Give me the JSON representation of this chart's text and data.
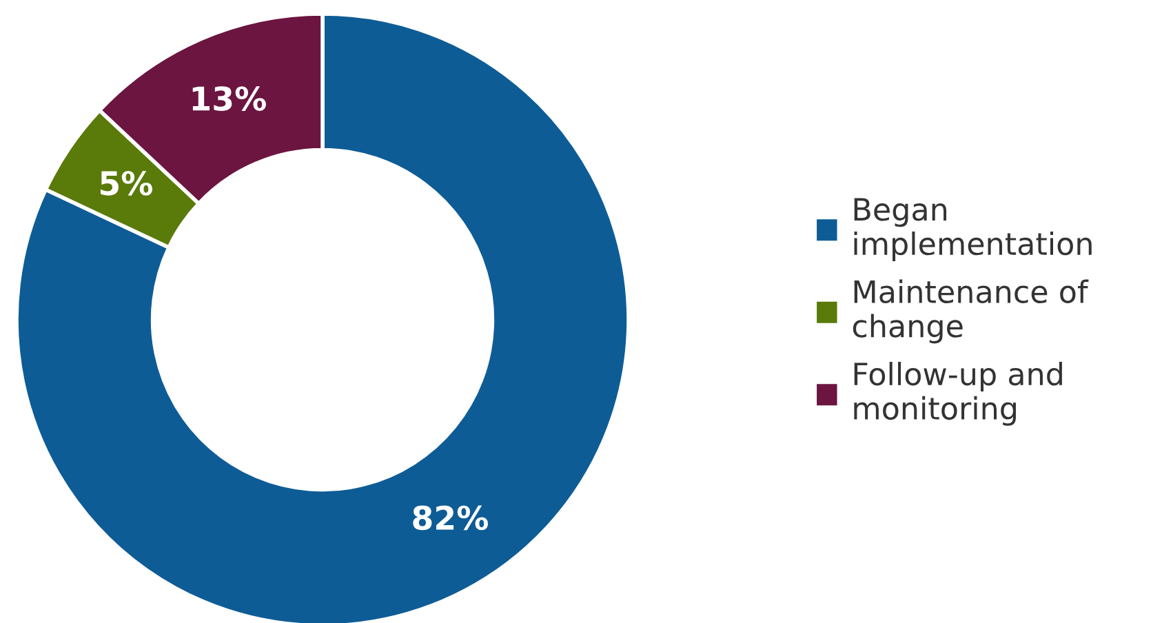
{
  "chart_data": {
    "type": "donut",
    "categories": [
      "Began\nimplementation",
      "Maintenance of\nchange",
      "Follow-up and\nmonitoring"
    ],
    "values": [
      82,
      5,
      13
    ],
    "colors": [
      "#0e5c96",
      "#5a7a0a",
      "#6b1540"
    ],
    "value_labels": [
      "82%",
      "5%",
      "13%"
    ],
    "legend": "right"
  }
}
